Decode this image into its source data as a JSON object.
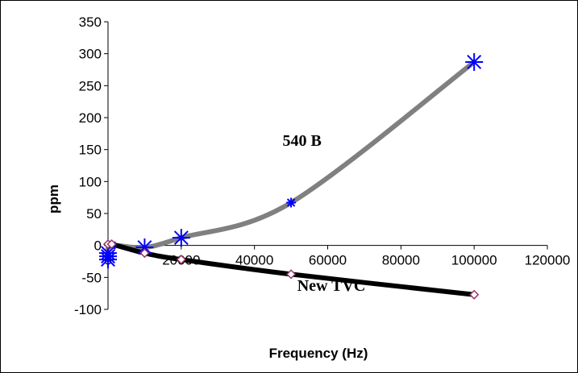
{
  "chart_data": {
    "type": "line",
    "xlabel": "Frequency (Hz)",
    "ylabel": "ppm",
    "xlim": [
      0,
      120000
    ],
    "ylim": [
      -100,
      350
    ],
    "x_ticks": [
      0,
      20000,
      40000,
      60000,
      80000,
      100000,
      120000
    ],
    "y_ticks": [
      -100,
      -50,
      0,
      50,
      100,
      150,
      200,
      250,
      300,
      350
    ],
    "grid": false,
    "legend": "none",
    "series": [
      {
        "color": "#808080",
        "marker": "asterisk",
        "marker_color": "#0000ff",
        "x": [
          0,
          0,
          0,
          1000,
          10000,
          20000,
          50000,
          100000
        ],
        "y": [
          -22,
          -17,
          -12,
          0,
          -3,
          12,
          67,
          287
        ],
        "marker_sizes": [
          "large",
          "large",
          "large",
          "small",
          "large",
          "large",
          "small",
          "large"
        ]
      },
      {
        "color": "#000000",
        "marker": "diamond",
        "marker_color": "#993366",
        "x": [
          0,
          1000,
          10000,
          20000,
          50000,
          100000
        ],
        "y": [
          2,
          2,
          -12,
          -22,
          -45,
          -77
        ]
      }
    ],
    "annotations": [
      {
        "text": "540 B",
        "x": 53000,
        "y": 165
      },
      {
        "text": "New TVC",
        "x": 61000,
        "y": -62
      }
    ]
  }
}
